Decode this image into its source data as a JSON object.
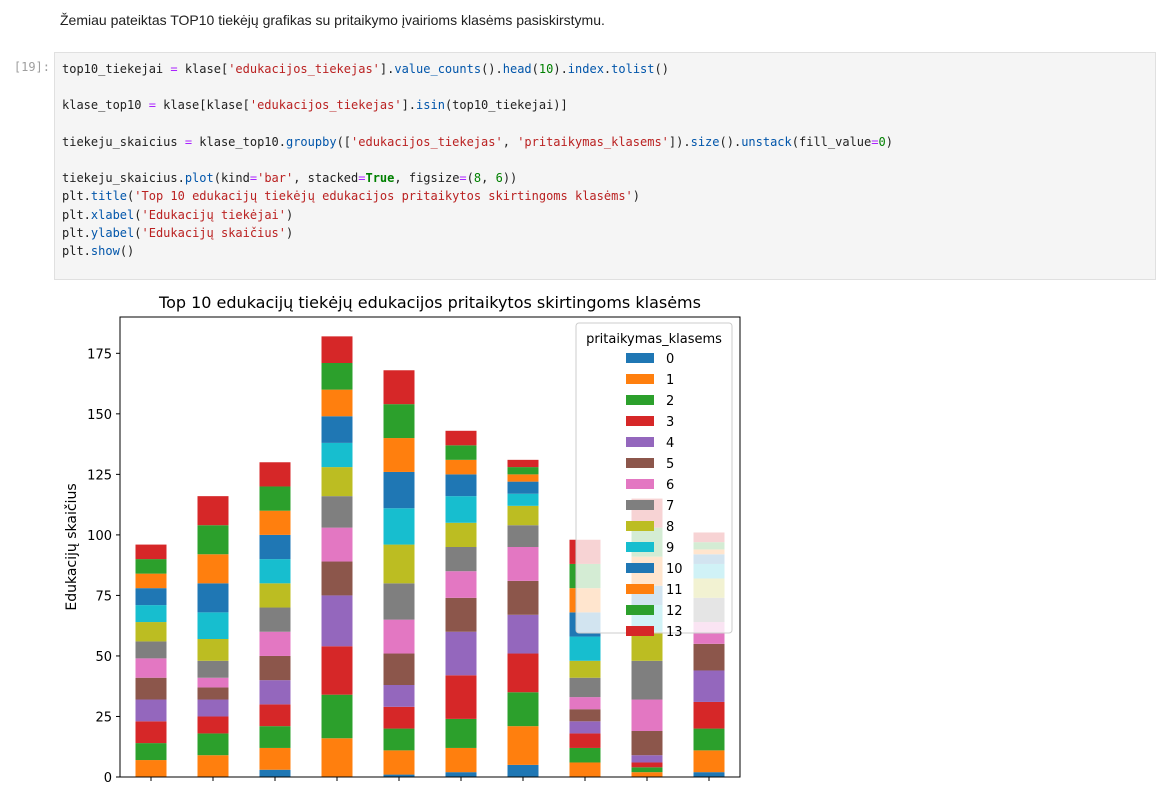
{
  "intro_text": "Žemiau pateiktas TOP10 tiekėjų grafikas su pritaikymo įvairioms klasėms pasiskirstymu.",
  "cell_prompt": "[19]:",
  "code_lines": [
    [
      [
        "top10_tiekejai ",
        ""
      ],
      [
        "=",
        "o"
      ],
      [
        " klase[",
        ""
      ],
      [
        "'edukacijos_tiekejas'",
        "s"
      ],
      [
        "].",
        ""
      ],
      [
        "value_counts",
        "f"
      ],
      [
        "().",
        ""
      ],
      [
        "head",
        "f"
      ],
      [
        "(",
        ""
      ],
      [
        "10",
        "n"
      ],
      [
        ").",
        ""
      ],
      [
        "index",
        "f"
      ],
      [
        ".",
        ""
      ],
      [
        "tolist",
        "f"
      ],
      [
        "()",
        ""
      ]
    ],
    [],
    [
      [
        "klase_top10 ",
        ""
      ],
      [
        "=",
        "o"
      ],
      [
        " klase[klase[",
        ""
      ],
      [
        "'edukacijos_tiekejas'",
        "s"
      ],
      [
        "].",
        ""
      ],
      [
        "isin",
        "f"
      ],
      [
        "(top10_tiekejai)]",
        ""
      ]
    ],
    [],
    [
      [
        "tiekeju_skaicius ",
        ""
      ],
      [
        "=",
        "o"
      ],
      [
        " klase_top10.",
        ""
      ],
      [
        "groupby",
        "f"
      ],
      [
        "([",
        ""
      ],
      [
        "'edukacijos_tiekejas'",
        "s"
      ],
      [
        ", ",
        ""
      ],
      [
        "'pritaikymas_klasems'",
        "s"
      ],
      [
        "]).",
        ""
      ],
      [
        "size",
        "f"
      ],
      [
        "().",
        ""
      ],
      [
        "unstack",
        "f"
      ],
      [
        "(fill_value",
        ""
      ],
      [
        "=",
        "o"
      ],
      [
        "0",
        "n"
      ],
      [
        ")",
        ""
      ]
    ],
    [],
    [
      [
        "tiekeju_skaicius.",
        ""
      ],
      [
        "plot",
        "f"
      ],
      [
        "(kind",
        ""
      ],
      [
        "=",
        "o"
      ],
      [
        "'bar'",
        "s"
      ],
      [
        ", stacked",
        ""
      ],
      [
        "=",
        "o"
      ],
      [
        "True",
        "k"
      ],
      [
        ", figsize",
        ""
      ],
      [
        "=",
        "o"
      ],
      [
        "(",
        ""
      ],
      [
        "8",
        "n"
      ],
      [
        ", ",
        ""
      ],
      [
        "6",
        "n"
      ],
      [
        "))",
        ""
      ]
    ],
    [
      [
        "plt.",
        ""
      ],
      [
        "title",
        "f"
      ],
      [
        "(",
        ""
      ],
      [
        "'Top 10 edukacijų tiekėjų edukacijos pritaikytos skirtingoms klasėms'",
        "s"
      ],
      [
        ")",
        ""
      ]
    ],
    [
      [
        "plt.",
        ""
      ],
      [
        "xlabel",
        "f"
      ],
      [
        "(",
        ""
      ],
      [
        "'Edukacijų tiekėjai'",
        "s"
      ],
      [
        ")",
        ""
      ]
    ],
    [
      [
        "plt.",
        ""
      ],
      [
        "ylabel",
        "f"
      ],
      [
        "(",
        ""
      ],
      [
        "'Edukacijų skaičius'",
        "s"
      ],
      [
        ")",
        ""
      ]
    ],
    [
      [
        "plt.",
        ""
      ],
      [
        "show",
        "f"
      ],
      [
        "()",
        ""
      ]
    ]
  ],
  "chart_data": {
    "type": "bar",
    "stacked": true,
    "title": "Top 10 edukacijų tiekėjų edukacijos pritaikytos skirtingoms klasėms",
    "xlabel": "",
    "ylabel": "Edukacijų skaičius",
    "ylim": [
      0,
      190
    ],
    "yticks": [
      0,
      25,
      50,
      75,
      100,
      125,
      150,
      175
    ],
    "categories": [
      "",
      "",
      "",
      "",
      "",
      "",
      "",
      "",
      "",
      ""
    ],
    "legend_title": "pritaikymas_klasems",
    "legend_position": "top-right",
    "colors": [
      "#1f77b4",
      "#ff7f0e",
      "#2ca02c",
      "#d62728",
      "#9467bd",
      "#8c564b",
      "#e377c2",
      "#7f7f7f",
      "#bcbd22",
      "#17becf",
      "#1f77b4",
      "#ff7f0e",
      "#2ca02c",
      "#d62728"
    ],
    "series": [
      {
        "name": "0",
        "values": [
          0,
          0,
          3,
          0,
          1,
          2,
          5,
          0,
          0,
          2
        ]
      },
      {
        "name": "1",
        "values": [
          7,
          9,
          9,
          16,
          10,
          10,
          16,
          6,
          2,
          9
        ]
      },
      {
        "name": "2",
        "values": [
          7,
          9,
          9,
          18,
          9,
          12,
          14,
          6,
          2,
          9
        ]
      },
      {
        "name": "3",
        "values": [
          9,
          7,
          9,
          20,
          9,
          18,
          16,
          6,
          2,
          11
        ]
      },
      {
        "name": "4",
        "values": [
          9,
          7,
          10,
          21,
          9,
          18,
          16,
          5,
          3,
          13
        ]
      },
      {
        "name": "5",
        "values": [
          9,
          5,
          10,
          14,
          13,
          14,
          14,
          5,
          10,
          11
        ]
      },
      {
        "name": "6",
        "values": [
          8,
          4,
          10,
          14,
          14,
          11,
          14,
          5,
          13,
          9
        ]
      },
      {
        "name": "7",
        "values": [
          7,
          7,
          10,
          13,
          15,
          10,
          9,
          8,
          16,
          10
        ]
      },
      {
        "name": "8",
        "values": [
          8,
          9,
          10,
          12,
          16,
          10,
          8,
          7,
          12,
          8
        ]
      },
      {
        "name": "9",
        "values": [
          7,
          11,
          10,
          10,
          15,
          11,
          5,
          10,
          11,
          6
        ]
      },
      {
        "name": "10",
        "values": [
          7,
          12,
          10,
          11,
          15,
          9,
          5,
          10,
          8,
          4
        ]
      },
      {
        "name": "11",
        "values": [
          6,
          12,
          10,
          11,
          14,
          6,
          3,
          10,
          12,
          2
        ]
      },
      {
        "name": "12",
        "values": [
          6,
          12,
          10,
          11,
          14,
          6,
          3,
          10,
          12,
          3
        ]
      },
      {
        "name": "13",
        "values": [
          6,
          12,
          10,
          11,
          14,
          6,
          3,
          10,
          12,
          4
        ]
      }
    ]
  }
}
